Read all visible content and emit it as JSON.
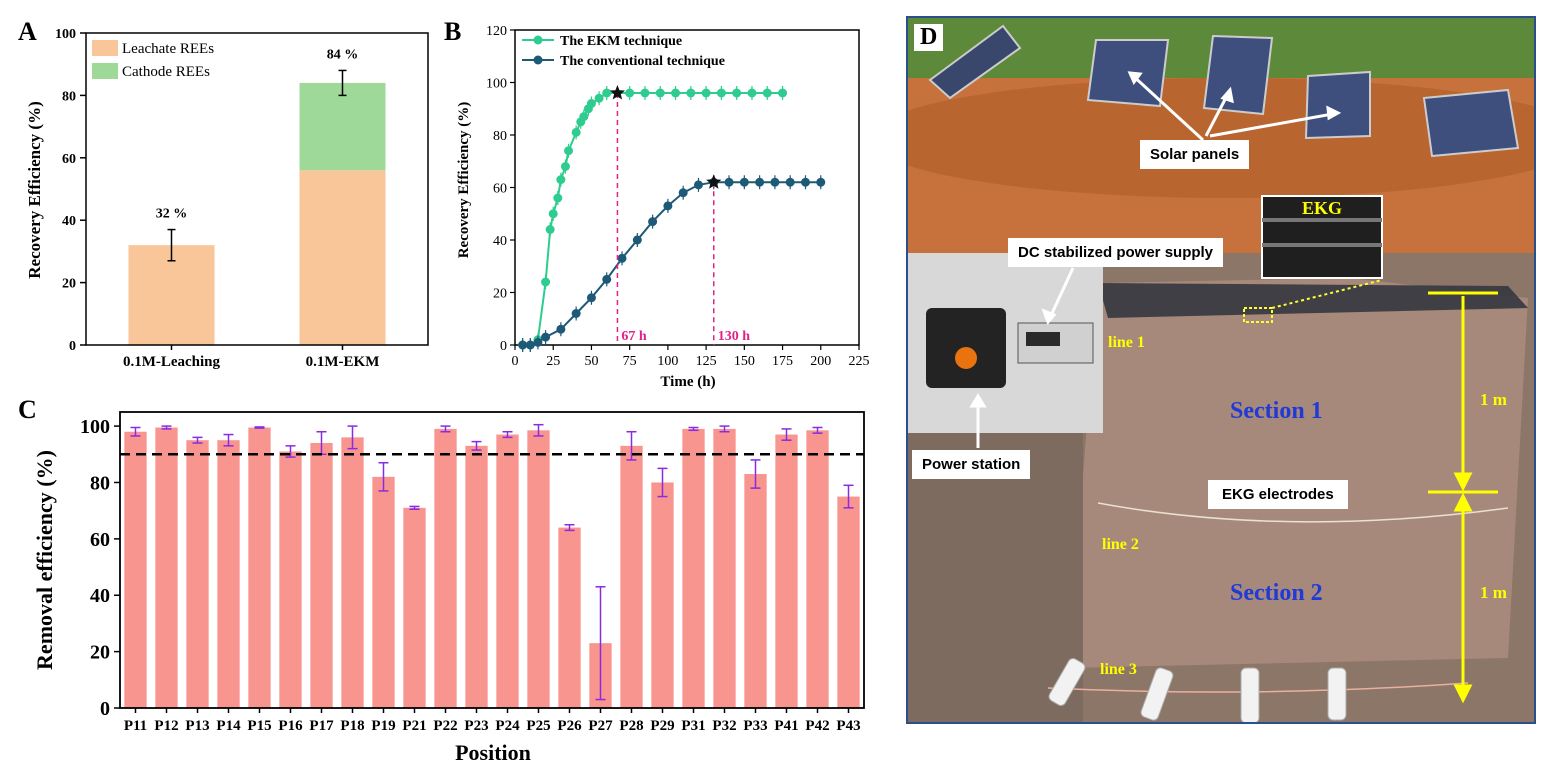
{
  "panel_letters": {
    "a": "A",
    "b": "B",
    "c": "C",
    "d": "D"
  },
  "chart_data": [
    {
      "panel": "A",
      "type": "bar",
      "stacked": true,
      "categories": [
        "0.1M-Leaching",
        "0.1M-EKM"
      ],
      "series": [
        {
          "name": "Leachate REEs",
          "values": [
            32,
            56
          ],
          "color": "#f9c699"
        },
        {
          "name": "Cathode REEs",
          "values": [
            0,
            28
          ],
          "color": "#9fd99a"
        }
      ],
      "totals": [
        32,
        84
      ],
      "errors": [
        5,
        4
      ],
      "data_labels": [
        "32 %",
        "84 %"
      ],
      "title": "",
      "xlabel": "",
      "ylabel": "Recovery Efficiency (%)",
      "ylim": [
        0,
        100
      ],
      "yticks": [
        0,
        20,
        40,
        60,
        80,
        100
      ],
      "legend": "top-left"
    },
    {
      "panel": "B",
      "type": "line",
      "title": "",
      "xlabel": "Time (h)",
      "ylabel": "Recovery Efficiency (%)",
      "xlim": [
        0,
        225
      ],
      "ylim": [
        0,
        120
      ],
      "xticks": [
        0,
        25,
        50,
        75,
        100,
        125,
        150,
        175,
        200,
        225
      ],
      "yticks": [
        0,
        20,
        40,
        60,
        80,
        100,
        120
      ],
      "legend": "top-left",
      "series": [
        {
          "name": "The EKM technique",
          "color": "#2ecc8f",
          "x": [
            5,
            10,
            15,
            20,
            23,
            25,
            28,
            30,
            33,
            35,
            40,
            43,
            45,
            48,
            50,
            55,
            60,
            75,
            85,
            95,
            105,
            115,
            125,
            135,
            145,
            155,
            165,
            175
          ],
          "y": [
            0,
            0,
            2,
            24,
            44,
            50,
            56,
            63,
            68,
            74,
            81,
            85,
            87,
            90,
            92,
            94,
            96,
            96,
            96,
            96,
            96,
            96,
            96,
            96,
            96,
            96,
            96,
            96
          ]
        },
        {
          "name": "The conventional technique",
          "color": "#1e5a78",
          "x": [
            5,
            10,
            15,
            20,
            30,
            40,
            50,
            60,
            70,
            80,
            90,
            100,
            110,
            120,
            130,
            140,
            150,
            160,
            170,
            180,
            190,
            200
          ],
          "y": [
            0,
            0,
            1,
            3,
            6,
            12,
            18,
            25,
            33,
            40,
            47,
            53,
            58,
            61,
            62,
            62,
            62,
            62,
            62,
            62,
            62,
            62
          ]
        }
      ],
      "markers": [
        {
          "x": 67,
          "y": 96,
          "label": "67 h"
        },
        {
          "x": 130,
          "y": 62,
          "label": "130 h"
        }
      ]
    },
    {
      "panel": "C",
      "type": "bar",
      "title": "",
      "xlabel": "Position",
      "ylabel": "Removal efficiency (%)",
      "ylim": [
        0,
        105
      ],
      "yticks": [
        0,
        20,
        40,
        60,
        80,
        100
      ],
      "threshold": 90,
      "color": "#f9958f",
      "error_color": "#8a2be2",
      "categories": [
        "P11",
        "P12",
        "P13",
        "P14",
        "P15",
        "P16",
        "P17",
        "P18",
        "P19",
        "P21",
        "P22",
        "P23",
        "P24",
        "P25",
        "P26",
        "P27",
        "P28",
        "P29",
        "P31",
        "P32",
        "P33",
        "P41",
        "P42",
        "P43"
      ],
      "values": [
        98,
        99.5,
        95,
        95,
        99.5,
        91,
        94,
        96,
        82,
        71,
        99,
        93,
        97,
        98.5,
        64,
        23,
        93,
        80,
        99,
        99,
        83,
        97,
        98.5,
        75
      ],
      "errors": [
        1.5,
        0.5,
        1,
        2,
        0.2,
        2,
        4,
        4,
        5,
        0.5,
        1,
        1.5,
        1,
        2,
        1,
        20,
        5,
        5,
        0.5,
        1,
        5,
        2,
        1,
        4
      ]
    }
  ],
  "photo": {
    "labels": {
      "solar": "Solar panels",
      "dc": "DC stabilized power supply",
      "ekg": "EKG",
      "power": "Power station",
      "electrodes": "EKG electrodes",
      "section1": "Section 1",
      "section2": "Section 2",
      "line1": "line 1",
      "line2": "line 2",
      "line3": "line 3",
      "dim1": "1 m",
      "dim2": "1 m"
    }
  }
}
